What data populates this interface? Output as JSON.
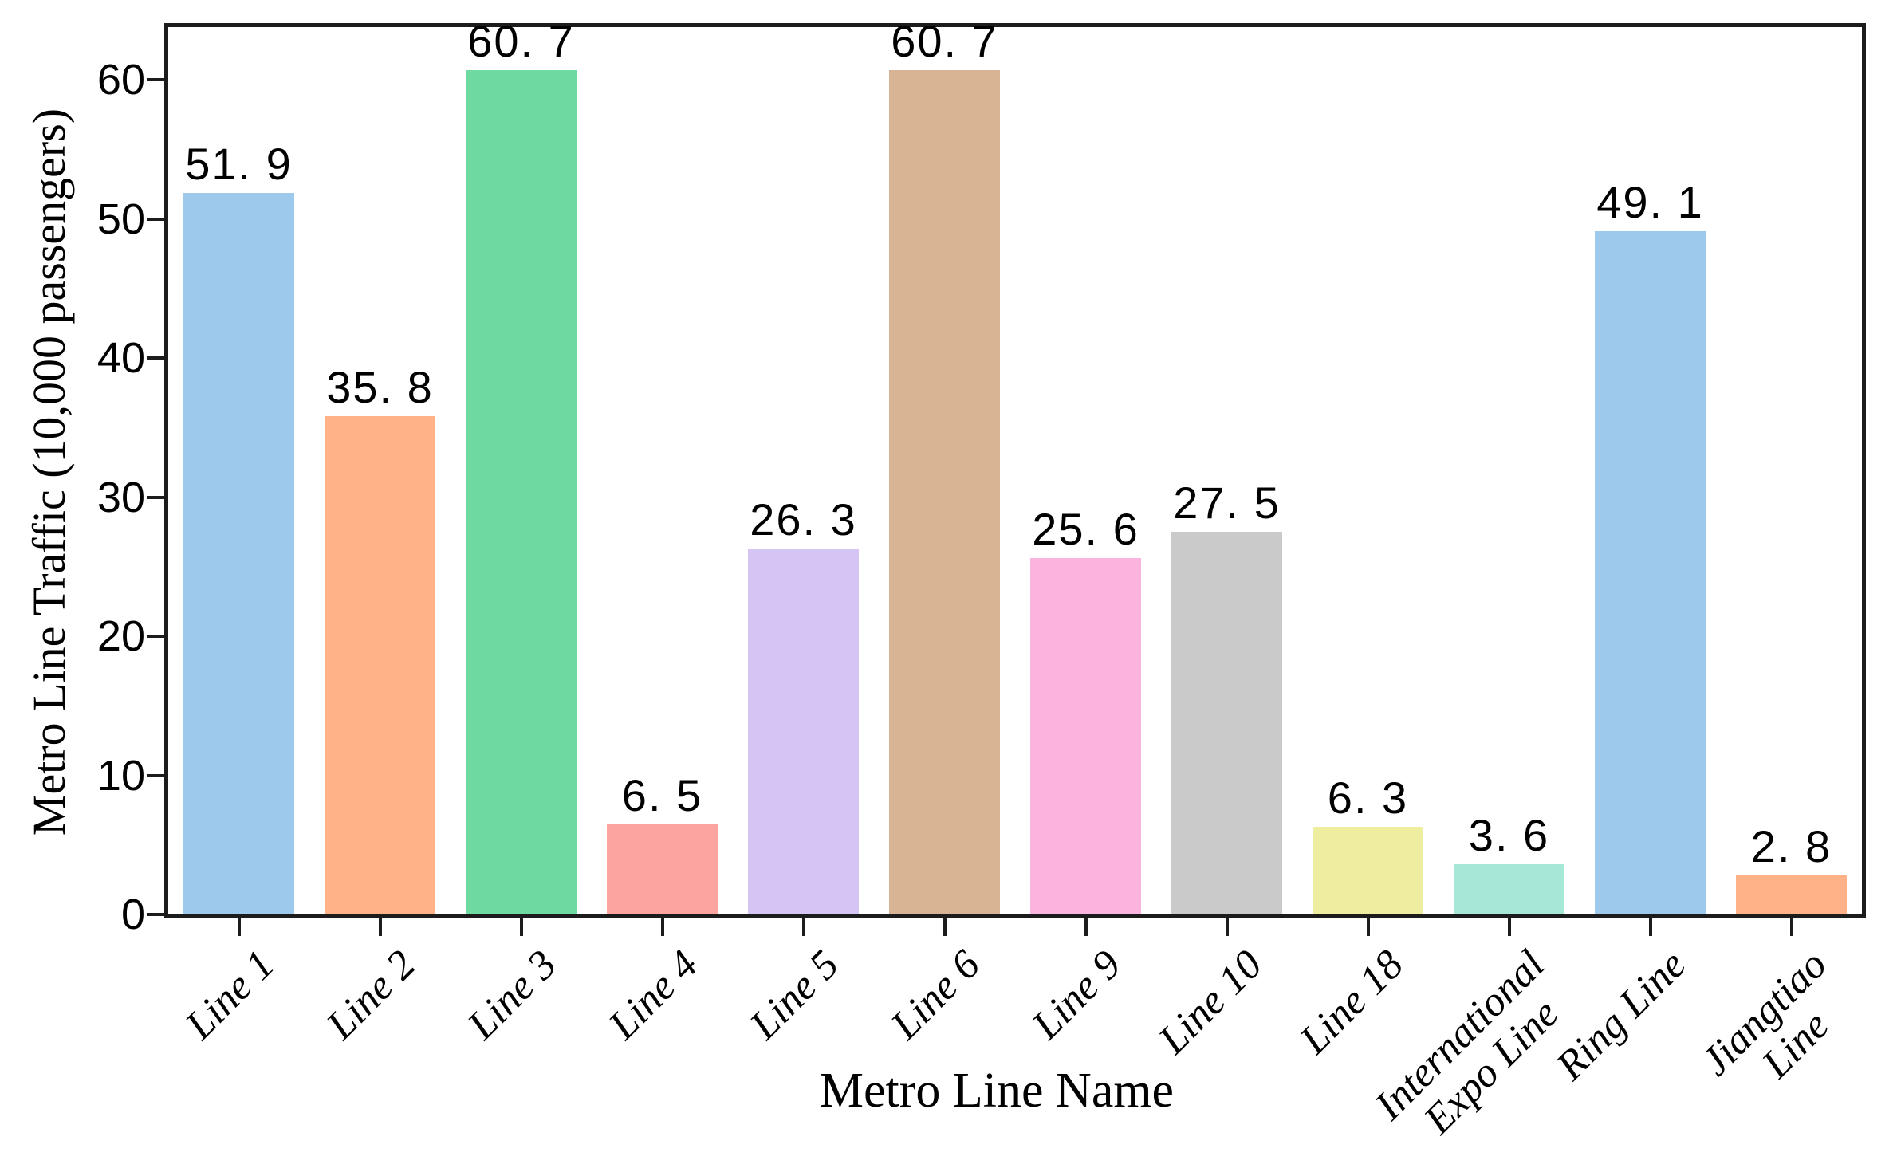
{
  "page": {
    "background": "#ffffff"
  },
  "style": {
    "spine_color": "#1c1c1c",
    "tick_color": "#1c1c1c",
    "text_color": "#000000"
  },
  "chart_data": {
    "type": "bar",
    "title": "",
    "xlabel": "Metro Line Name",
    "ylabel": "Metro Line Traffic (10,000 passengers)",
    "categories": [
      "Line 1",
      "Line 2",
      "Line 3",
      "Line 4",
      "Line 5",
      "Line 6",
      "Line 9",
      "Line 10",
      "Line 18",
      "International\nExpo Line",
      "Ring Line",
      "Jiangtiao\nLine"
    ],
    "values": [
      51.9,
      35.8,
      60.7,
      6.5,
      26.3,
      60.7,
      25.6,
      27.5,
      6.3,
      3.6,
      49.1,
      2.8
    ],
    "value_labels": [
      "51. 9",
      "35. 8",
      "60. 7",
      "6. 5",
      "26. 3",
      "60. 7",
      "25. 6",
      "27. 5",
      "6. 3",
      "3. 6",
      "49. 1",
      "2. 8"
    ],
    "bar_colors": [
      "#9cc9ec",
      "#ffb287",
      "#6fd9a2",
      "#fba4a0",
      "#d4c5f4",
      "#d8b494",
      "#fcb4df",
      "#cacaca",
      "#efeea0",
      "#a6e8d8",
      "#9cc9ec",
      "#ffb287"
    ],
    "yticks": [
      0,
      10,
      20,
      30,
      40,
      50,
      60
    ],
    "ytick_labels": [
      "0",
      "10",
      "20",
      "30",
      "40",
      "50",
      "60"
    ],
    "ylim": [
      0,
      63.8
    ],
    "grid": false,
    "legend": null,
    "value_label_position": "above",
    "xtick_rotation_deg": 45
  }
}
